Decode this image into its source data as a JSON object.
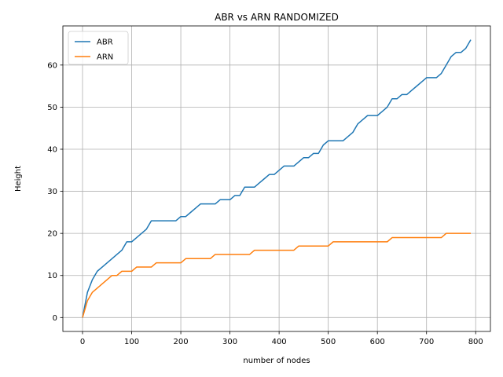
{
  "chart_data": {
    "type": "line",
    "title": "ABR vs ARN RANDOMIZED",
    "xlabel": "number of nodes",
    "ylabel": "Height",
    "xlim": [
      -40,
      830
    ],
    "ylim": [
      -3.3,
      69.3
    ],
    "xticks": [
      0,
      100,
      200,
      300,
      400,
      500,
      600,
      700,
      800
    ],
    "yticks": [
      0,
      10,
      20,
      30,
      40,
      50,
      60
    ],
    "grid": true,
    "legend_position": "upper-left",
    "series": [
      {
        "name": "ABR",
        "color": "#1f77b4",
        "x": [
          0,
          10,
          20,
          30,
          40,
          50,
          60,
          70,
          80,
          90,
          100,
          110,
          120,
          130,
          140,
          150,
          160,
          170,
          180,
          190,
          200,
          210,
          220,
          230,
          240,
          250,
          260,
          270,
          280,
          290,
          300,
          310,
          320,
          330,
          340,
          350,
          360,
          370,
          380,
          390,
          400,
          410,
          420,
          430,
          440,
          450,
          460,
          470,
          480,
          490,
          500,
          510,
          520,
          530,
          540,
          550,
          560,
          570,
          580,
          590,
          600,
          610,
          620,
          630,
          640,
          650,
          660,
          670,
          680,
          690,
          700,
          710,
          720,
          730,
          740,
          750,
          760,
          770,
          780,
          790
        ],
        "y": [
          0,
          6,
          9,
          11,
          12,
          13,
          14,
          15,
          16,
          18,
          18,
          19,
          20,
          21,
          23,
          23,
          23,
          23,
          23,
          23,
          24,
          24,
          25,
          26,
          27,
          27,
          27,
          27,
          28,
          28,
          28,
          29,
          29,
          31,
          31,
          31,
          32,
          33,
          34,
          34,
          35,
          36,
          36,
          36,
          37,
          38,
          38,
          39,
          39,
          41,
          42,
          42,
          42,
          42,
          43,
          44,
          46,
          47,
          48,
          48,
          48,
          49,
          50,
          52,
          52,
          53,
          53,
          54,
          55,
          56,
          57,
          57,
          57,
          58,
          60,
          62,
          63,
          63,
          64,
          66
        ]
      },
      {
        "name": "ARN",
        "color": "#ff7f0e",
        "x": [
          0,
          10,
          20,
          30,
          40,
          50,
          60,
          70,
          80,
          90,
          100,
          110,
          120,
          130,
          140,
          150,
          160,
          170,
          180,
          190,
          200,
          210,
          220,
          230,
          240,
          250,
          260,
          270,
          280,
          290,
          300,
          310,
          320,
          330,
          340,
          350,
          360,
          370,
          380,
          390,
          400,
          410,
          420,
          430,
          440,
          450,
          460,
          470,
          480,
          490,
          500,
          510,
          520,
          530,
          540,
          550,
          560,
          570,
          580,
          590,
          600,
          610,
          620,
          630,
          640,
          650,
          660,
          670,
          680,
          690,
          700,
          710,
          720,
          730,
          740,
          750,
          760,
          770,
          780,
          790
        ],
        "y": [
          0,
          4,
          6,
          7,
          8,
          9,
          10,
          10,
          11,
          11,
          11,
          12,
          12,
          12,
          12,
          13,
          13,
          13,
          13,
          13,
          13,
          14,
          14,
          14,
          14,
          14,
          14,
          15,
          15,
          15,
          15,
          15,
          15,
          15,
          15,
          16,
          16,
          16,
          16,
          16,
          16,
          16,
          16,
          16,
          17,
          17,
          17,
          17,
          17,
          17,
          17,
          18,
          18,
          18,
          18,
          18,
          18,
          18,
          18,
          18,
          18,
          18,
          18,
          19,
          19,
          19,
          19,
          19,
          19,
          19,
          19,
          19,
          19,
          19,
          20,
          20,
          20,
          20,
          20,
          20
        ]
      }
    ]
  }
}
